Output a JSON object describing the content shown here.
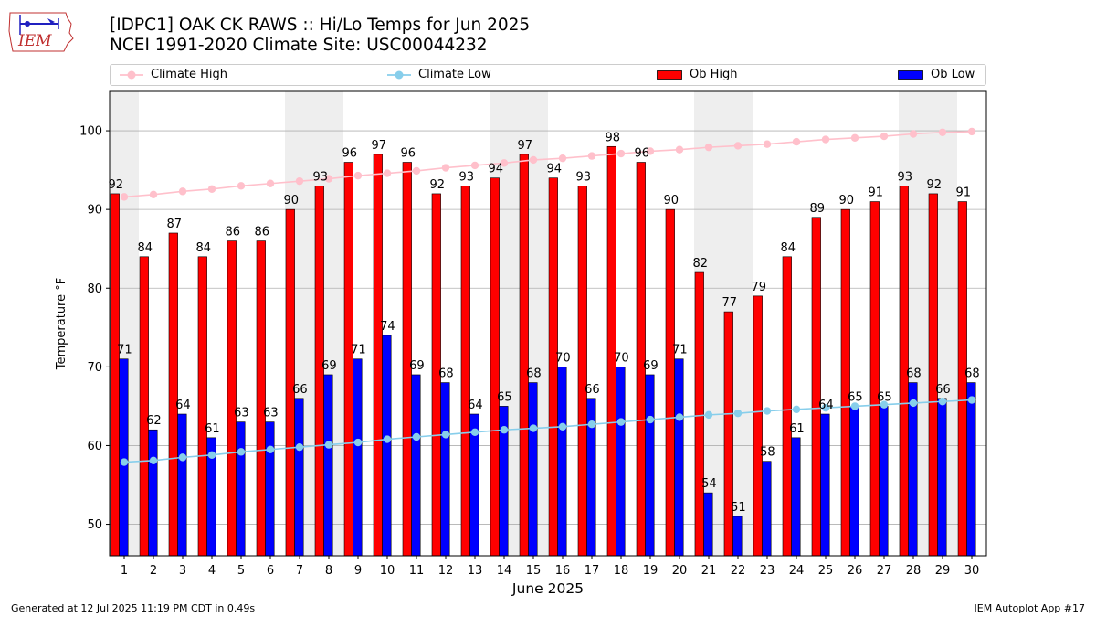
{
  "header": {
    "title_line1": "[IDPC1] OAK CK RAWS :: Hi/Lo Temps for Jun 2025",
    "title_line2": "NCEI 1991-2020 Climate Site: USC00044232"
  },
  "logo": {
    "text": "IEM"
  },
  "footer": {
    "generated": "Generated at 12 Jul 2025 11:19 PM CDT in 0.49s",
    "app": "IEM Autoplot App #17"
  },
  "colors": {
    "ob_high": "#ff0000",
    "ob_low": "#0000ff",
    "climate_high": "#ffc0cb",
    "climate_low": "#87ceeb",
    "weekend_shade": "#eeeeee"
  },
  "chart_data": {
    "type": "bar",
    "xlabel": "June 2025",
    "ylabel": "Temperature °F",
    "ylim": [
      46,
      105
    ],
    "yticks": [
      50,
      60,
      70,
      80,
      90,
      100
    ],
    "grid": true,
    "legend_placement": "top",
    "x": [
      1,
      2,
      3,
      4,
      5,
      6,
      7,
      8,
      9,
      10,
      11,
      12,
      13,
      14,
      15,
      16,
      17,
      18,
      19,
      20,
      21,
      22,
      23,
      24,
      25,
      26,
      27,
      28,
      29,
      30
    ],
    "shaded_days": [
      1,
      7,
      8,
      14,
      15,
      21,
      22,
      28,
      29
    ],
    "series": [
      {
        "name": "Ob High",
        "kind": "bar",
        "values": [
          92,
          84,
          87,
          84,
          86,
          86,
          90,
          93,
          96,
          97,
          96,
          92,
          93,
          94,
          97,
          94,
          93,
          98,
          96,
          90,
          82,
          77,
          79,
          84,
          89,
          90,
          91,
          93,
          92,
          91
        ]
      },
      {
        "name": "Ob Low",
        "kind": "bar",
        "values": [
          71,
          62,
          64,
          61,
          63,
          63,
          66,
          69,
          71,
          74,
          69,
          68,
          64,
          65,
          68,
          70,
          66,
          70,
          69,
          71,
          54,
          51,
          58,
          61,
          64,
          65,
          65,
          68,
          66,
          68
        ]
      },
      {
        "name": "Climate High",
        "kind": "line",
        "values": [
          91.6,
          91.9,
          92.3,
          92.6,
          93.0,
          93.3,
          93.6,
          93.9,
          94.3,
          94.6,
          94.9,
          95.3,
          95.6,
          95.9,
          96.3,
          96.5,
          96.8,
          97.1,
          97.4,
          97.6,
          97.9,
          98.1,
          98.3,
          98.6,
          98.9,
          99.1,
          99.3,
          99.6,
          99.8,
          99.9
        ]
      },
      {
        "name": "Climate Low",
        "kind": "line",
        "values": [
          57.9,
          58.1,
          58.5,
          58.8,
          59.2,
          59.5,
          59.8,
          60.1,
          60.4,
          60.8,
          61.1,
          61.4,
          61.7,
          62.0,
          62.2,
          62.4,
          62.7,
          63.0,
          63.3,
          63.6,
          63.9,
          64.1,
          64.4,
          64.6,
          64.8,
          65.0,
          65.2,
          65.4,
          65.6,
          65.8
        ]
      }
    ]
  }
}
